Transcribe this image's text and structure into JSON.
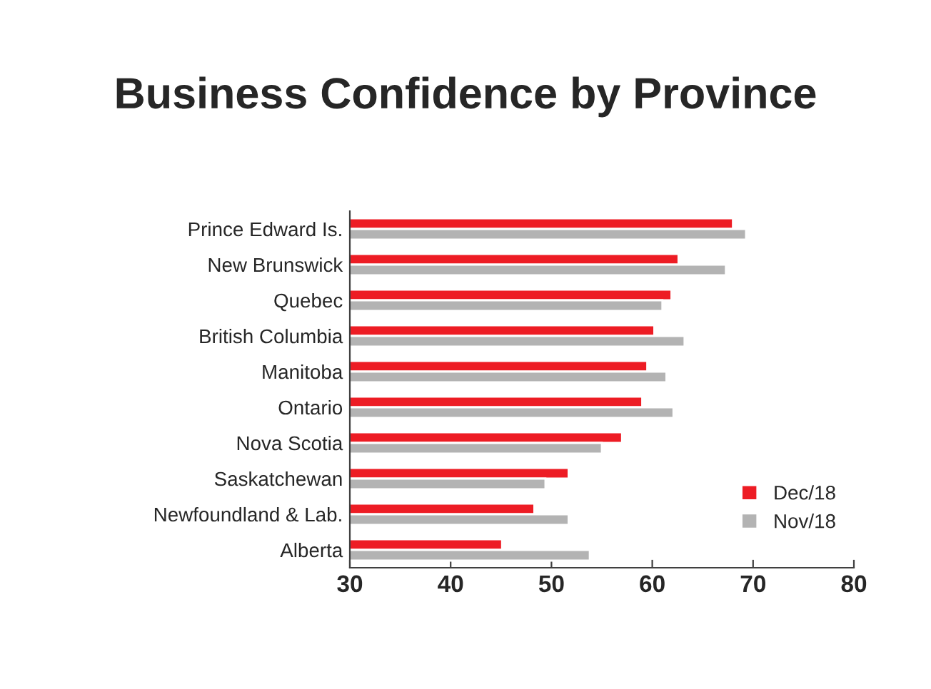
{
  "chart_data": {
    "type": "bar",
    "orientation": "horizontal",
    "title": "Business Confidence by Province",
    "categories": [
      "Prince Edward Is.",
      "New Brunswick",
      "Quebec",
      "British Columbia",
      "Manitoba",
      "Ontario",
      "Nova Scotia",
      "Saskatchewan",
      "Newfoundland & Lab.",
      "Alberta"
    ],
    "series": [
      {
        "name": "Dec/18",
        "color": "#ed1c24",
        "values": [
          68.0,
          62.6,
          61.9,
          60.2,
          59.5,
          59.0,
          57.0,
          51.7,
          48.3,
          45.1
        ]
      },
      {
        "name": "Nov/18",
        "color": "#b3b3b3",
        "values": [
          69.3,
          67.3,
          61.0,
          63.2,
          61.4,
          62.1,
          55.0,
          49.4,
          51.7,
          53.8
        ]
      }
    ],
    "xlim": [
      30,
      80
    ],
    "xticks": [
      30,
      40,
      50,
      60,
      70,
      80
    ],
    "grid": false,
    "legend": "bottom right"
  }
}
